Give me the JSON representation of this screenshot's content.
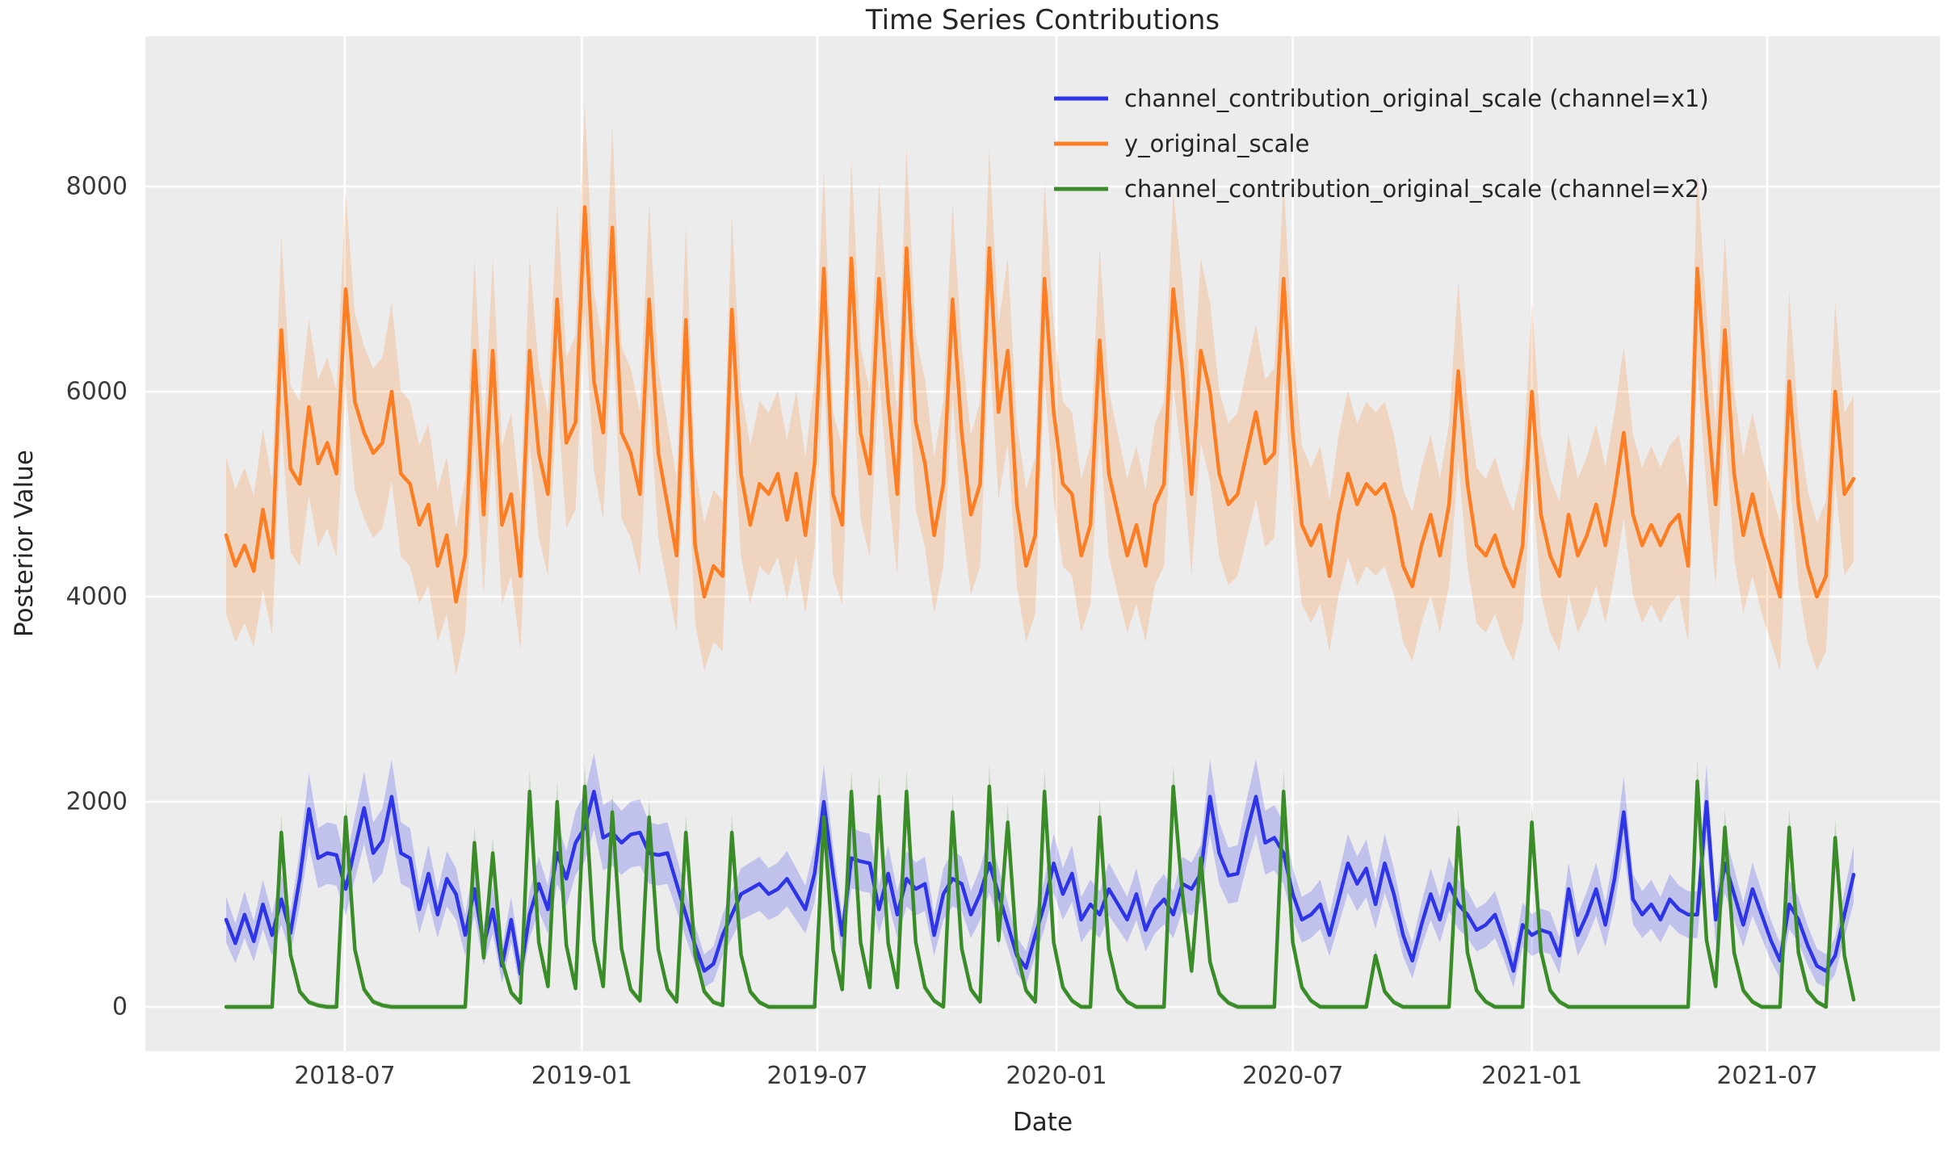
{
  "chart_data": {
    "type": "line",
    "title": "Time Series Contributions",
    "xlabel": "Date",
    "ylabel": "Posterior Value",
    "x_freq": "weekly",
    "x_start": "2018-04",
    "x_end": "2021-09",
    "n_points": 178,
    "ylim": [
      0,
      8000
    ],
    "grid": "white-on-gray",
    "legend_position": "upper right",
    "background_color": "#ececec",
    "grid_color": "#ffffff",
    "text_color": "#262626",
    "y_ticks": [
      0,
      2000,
      4000,
      6000,
      8000
    ],
    "x_tick_labels": [
      "2018-07",
      "2019-01",
      "2019-07",
      "2020-01",
      "2020-07",
      "2021-01",
      "2021-07"
    ],
    "x_tick_positions": [
      0.0729,
      0.2186,
      0.3633,
      0.5102,
      0.6554,
      0.8023,
      0.9469
    ],
    "series": [
      {
        "name": "channel_contribution_original_scale (channel=x1)",
        "color": "#2d35e6",
        "band_color": "rgba(42,46,236,0.22)",
        "band_base": 120,
        "band_slope": 0.12,
        "values": [
          850,
          620,
          900,
          640,
          1000,
          700,
          1050,
          720,
          1250,
          1930,
          1450,
          1500,
          1480,
          1150,
          1550,
          1940,
          1500,
          1620,
          2050,
          1500,
          1450,
          950,
          1300,
          900,
          1250,
          1100,
          700,
          1150,
          600,
          950,
          400,
          850,
          320,
          900,
          1200,
          950,
          1500,
          1250,
          1600,
          1750,
          2100,
          1650,
          1700,
          1600,
          1680,
          1700,
          1500,
          1480,
          1500,
          1200,
          900,
          600,
          350,
          420,
          700,
          900,
          1100,
          1150,
          1200,
          1100,
          1150,
          1250,
          1100,
          950,
          1300,
          2000,
          1300,
          700,
          1450,
          1420,
          1400,
          950,
          1300,
          900,
          1250,
          1150,
          1200,
          700,
          1100,
          1250,
          1200,
          900,
          1100,
          1400,
          1100,
          800,
          500,
          380,
          700,
          1000,
          1400,
          1100,
          1300,
          850,
          1000,
          900,
          1150,
          1000,
          850,
          1100,
          750,
          950,
          1050,
          900,
          1200,
          1150,
          1300,
          2050,
          1500,
          1280,
          1300,
          1700,
          2050,
          1600,
          1650,
          1500,
          1100,
          850,
          900,
          1000,
          700,
          1050,
          1400,
          1200,
          1350,
          1000,
          1400,
          1100,
          700,
          450,
          800,
          1100,
          850,
          1200,
          1000,
          900,
          750,
          800,
          900,
          650,
          350,
          800,
          700,
          750,
          720,
          500,
          1150,
          700,
          900,
          1150,
          800,
          1250,
          1900,
          1050,
          900,
          1000,
          850,
          1050,
          950,
          900,
          900,
          2000,
          850,
          1400,
          1100,
          800,
          1150,
          900,
          650,
          450,
          1000,
          850,
          600,
          400,
          350,
          500,
          900,
          1290
        ]
      },
      {
        "name": "y_original_scale",
        "color": "#fb7e24",
        "band_color": "rgba(251,126,36,0.22)",
        "band_base": 420,
        "band_slope": 0.075,
        "values": [
          4600,
          4300,
          4500,
          4250,
          4850,
          4380,
          6600,
          5250,
          5100,
          5850,
          5300,
          5500,
          5200,
          7000,
          5900,
          5600,
          5400,
          5500,
          6000,
          5200,
          5100,
          4700,
          4900,
          4300,
          4600,
          3950,
          4400,
          6400,
          4800,
          6400,
          4700,
          5000,
          4200,
          6400,
          5400,
          5000,
          6900,
          5500,
          5700,
          7800,
          6100,
          5600,
          7600,
          5600,
          5400,
          5000,
          6900,
          5400,
          4900,
          4400,
          6700,
          4500,
          4000,
          4300,
          4200,
          6800,
          5200,
          4700,
          5100,
          5000,
          5200,
          4750,
          5200,
          4600,
          5300,
          7200,
          5000,
          4700,
          7300,
          5600,
          5200,
          7100,
          5900,
          5000,
          7400,
          5700,
          5300,
          4600,
          5100,
          6900,
          5600,
          4800,
          5100,
          7400,
          5800,
          6400,
          4900,
          4300,
          4600,
          7100,
          5800,
          5100,
          5000,
          4400,
          4700,
          6500,
          5200,
          4800,
          4400,
          4700,
          4300,
          4900,
          5100,
          7000,
          6200,
          5000,
          6400,
          6000,
          5200,
          4900,
          5000,
          5400,
          5800,
          5300,
          5400,
          7100,
          5600,
          4700,
          4500,
          4700,
          4200,
          4800,
          5200,
          4900,
          5100,
          5000,
          5100,
          4800,
          4300,
          4100,
          4500,
          4800,
          4400,
          4900,
          6200,
          5100,
          4500,
          4400,
          4600,
          4300,
          4100,
          4500,
          6000,
          4800,
          4400,
          4200,
          4800,
          4400,
          4600,
          4900,
          4500,
          5000,
          5600,
          4800,
          4500,
          4700,
          4500,
          4700,
          4800,
          4300,
          7200,
          5900,
          4900,
          6600,
          5200,
          4600,
          5000,
          4600,
          4300,
          4000,
          6100,
          4900,
          4300,
          4000,
          4200,
          6000,
          5000,
          5150
        ]
      },
      {
        "name": "channel_contribution_original_scale (channel=x2)",
        "color": "#3a8c28",
        "band_color": "rgba(58,140,40,0.22)",
        "band_base": 25,
        "band_slope": 0.09,
        "values": [
          0,
          0,
          0,
          0,
          0,
          0,
          1700,
          510,
          150,
          45,
          15,
          0,
          0,
          1850,
          560,
          170,
          50,
          15,
          0,
          0,
          0,
          0,
          0,
          0,
          0,
          0,
          0,
          1600,
          480,
          1500,
          450,
          140,
          40,
          2100,
          630,
          200,
          2000,
          600,
          180,
          2150,
          650,
          200,
          1900,
          570,
          170,
          60,
          1850,
          560,
          170,
          50,
          1700,
          510,
          150,
          45,
          15,
          1700,
          510,
          150,
          45,
          0,
          0,
          0,
          0,
          0,
          0,
          1850,
          560,
          170,
          2100,
          630,
          190,
          2050,
          620,
          190,
          2100,
          630,
          190,
          60,
          0,
          1900,
          570,
          170,
          50,
          2150,
          650,
          1800,
          540,
          160,
          50,
          2100,
          630,
          190,
          60,
          0,
          0,
          1850,
          560,
          170,
          50,
          0,
          0,
          0,
          0,
          2150,
          1100,
          350,
          1450,
          440,
          130,
          40,
          0,
          0,
          0,
          0,
          0,
          2100,
          630,
          190,
          60,
          0,
          0,
          0,
          0,
          0,
          0,
          500,
          150,
          45,
          0,
          0,
          0,
          0,
          0,
          0,
          1750,
          530,
          160,
          50,
          0,
          0,
          0,
          0,
          1800,
          540,
          160,
          50,
          0,
          0,
          0,
          0,
          0,
          0,
          0,
          0,
          0,
          0,
          0,
          0,
          0,
          0,
          2200,
          650,
          200,
          1750,
          530,
          160,
          50,
          0,
          0,
          0,
          1750,
          530,
          160,
          50,
          0,
          1650,
          500,
          70
        ]
      }
    ]
  }
}
